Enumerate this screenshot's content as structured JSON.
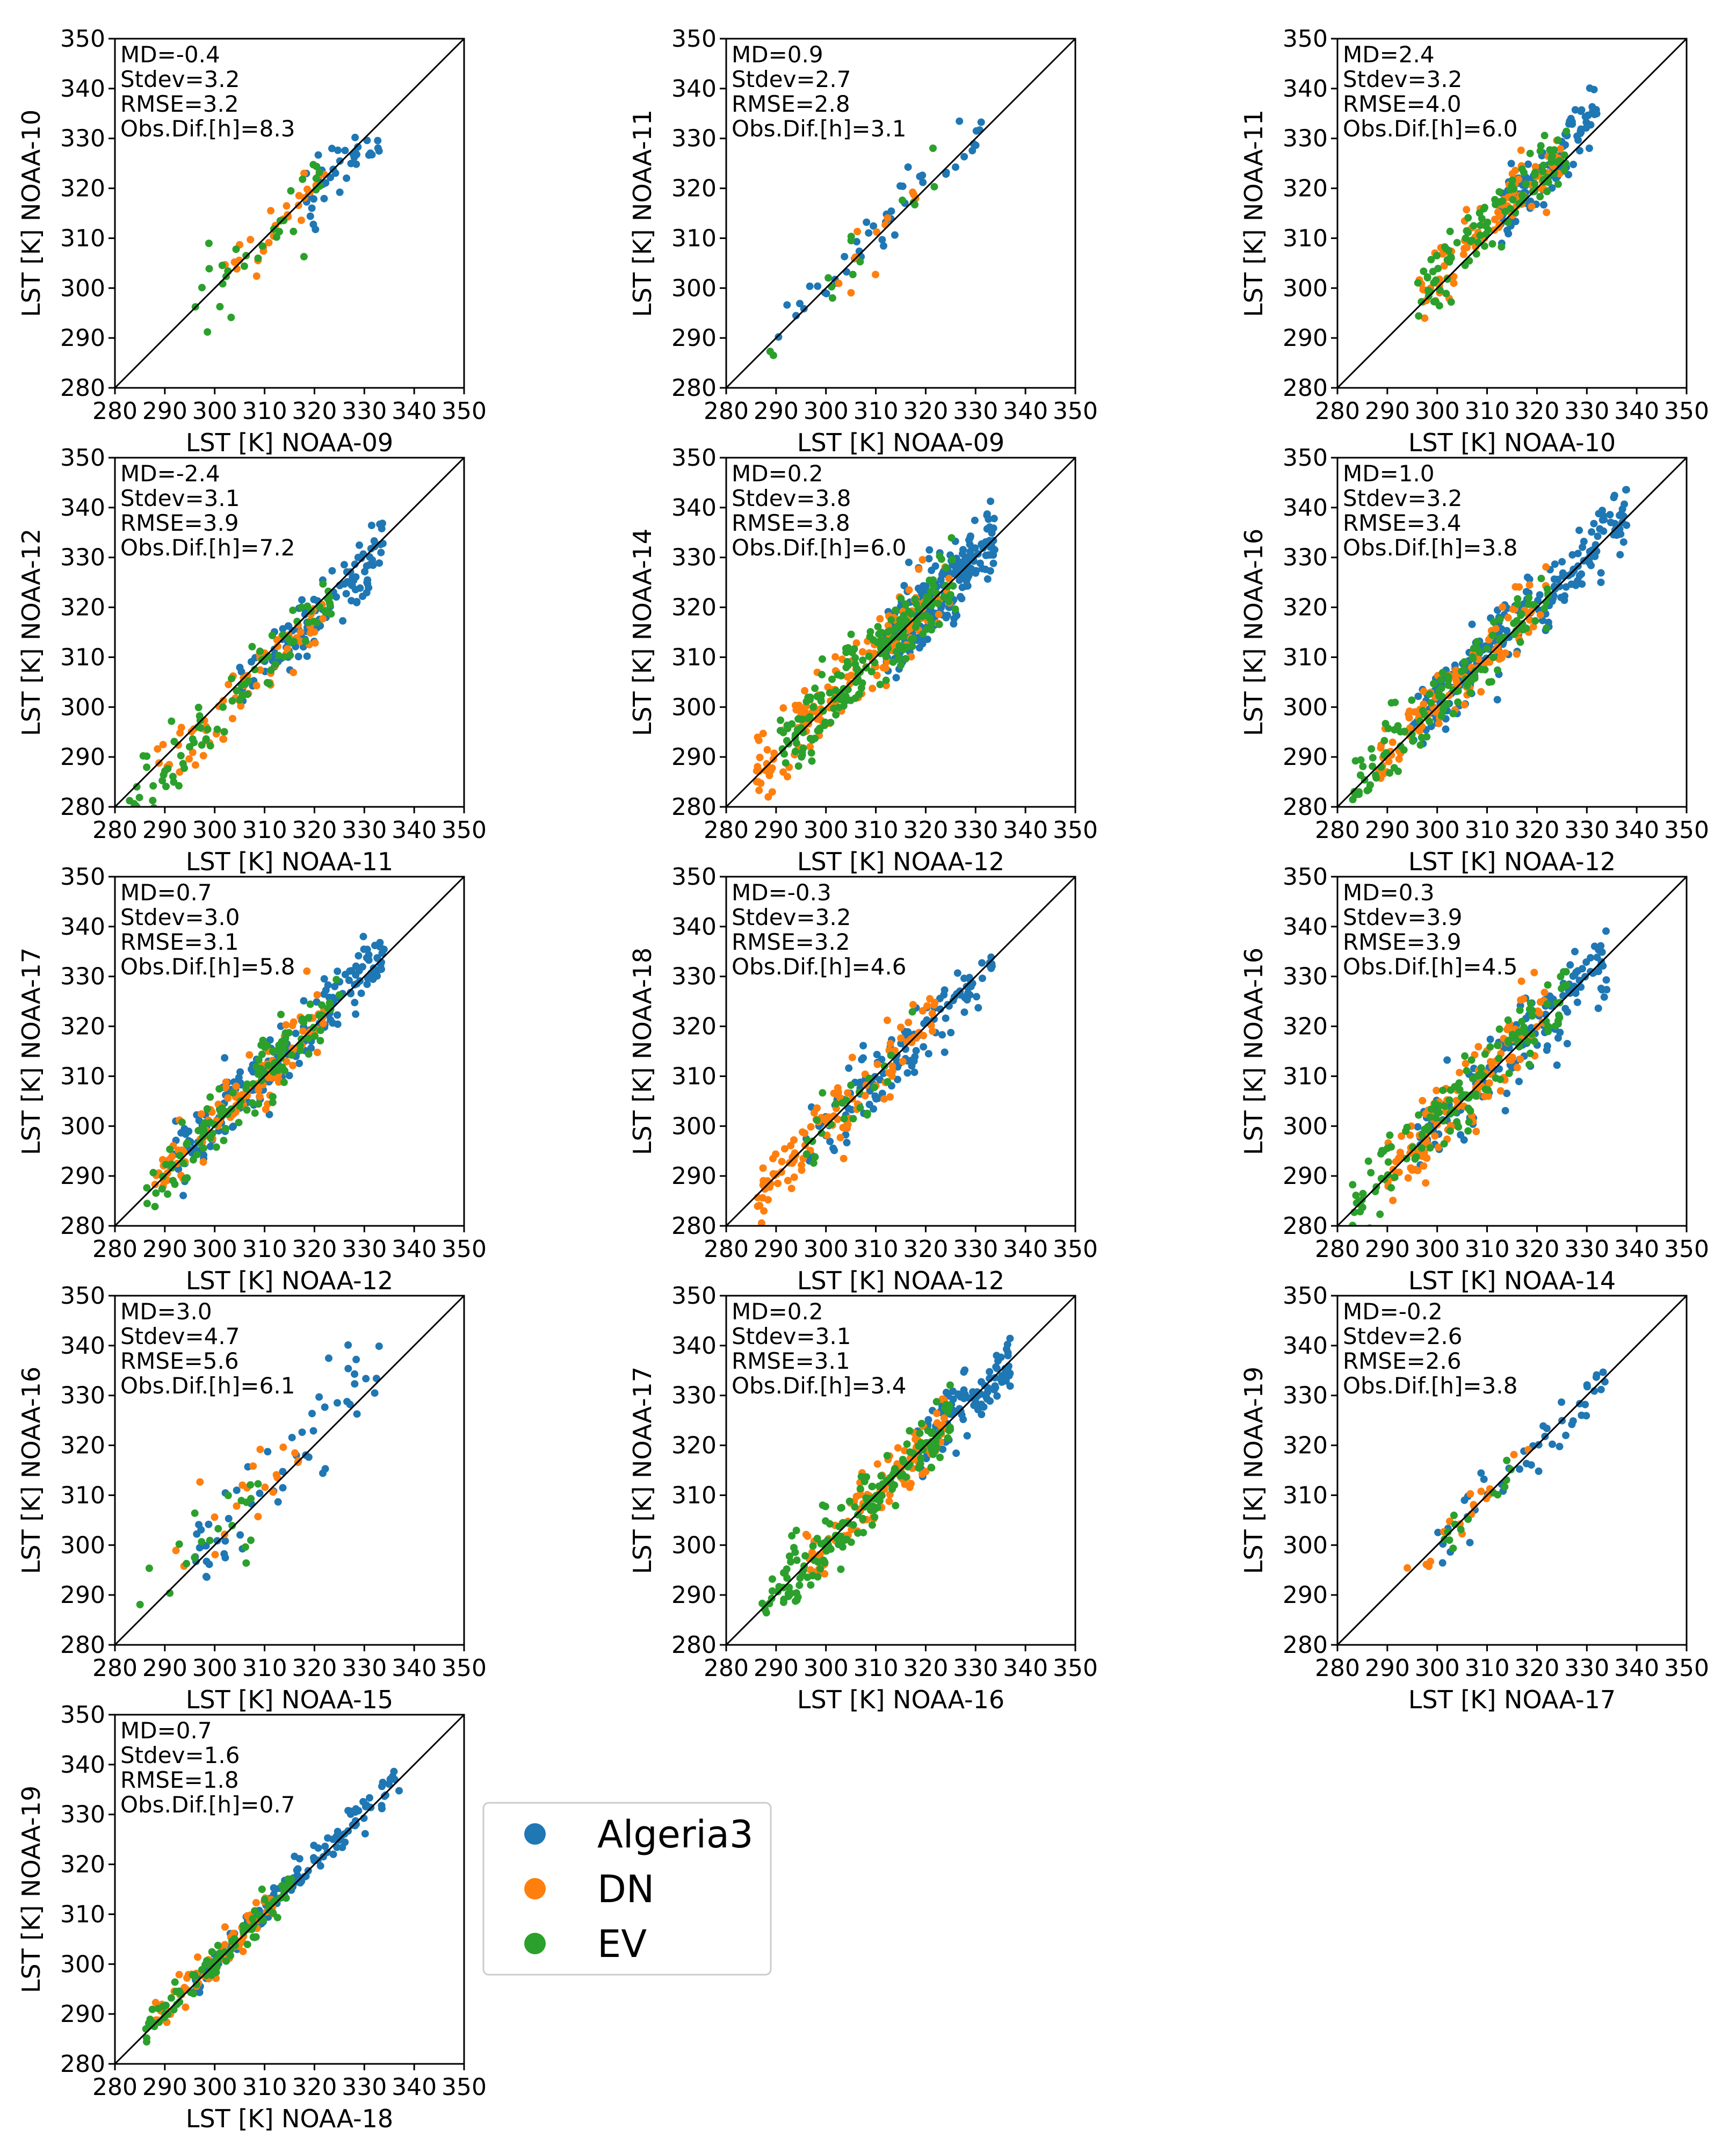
{
  "chart_data": {
    "type": "scatter",
    "series_names": [
      "Algeria3",
      "DN",
      "EV"
    ],
    "colors": {
      "Algeria3": "#1f77b4",
      "DN": "#ff7f0e",
      "EV": "#2ca02c"
    },
    "axis_range": [
      280,
      350
    ],
    "ticks": [
      280,
      290,
      300,
      310,
      320,
      330,
      340,
      350
    ],
    "panels": [
      {
        "xlabel": "LST [K] NOAA-09",
        "ylabel": "LST [K] NOAA-10",
        "stats": [
          "MD=-0.4",
          "Stdev=3.2",
          "RMSE=3.2",
          "Obs.Dif.[h]=8.3"
        ],
        "md": -0.4,
        "sd": 3.2,
        "clusters": {
          "Algeria3": {
            "n": 40,
            "lo": 318,
            "hi": 333
          },
          "DN": {
            "n": 30,
            "lo": 302,
            "hi": 322
          },
          "EV": {
            "n": 32,
            "lo": 296,
            "hi": 322
          }
        }
      },
      {
        "xlabel": "LST [K] NOAA-09",
        "ylabel": "LST [K] NOAA-11",
        "stats": [
          "MD=0.9",
          "Stdev=2.7",
          "RMSE=2.8",
          "Obs.Dif.[h]=3.1"
        ],
        "md": 0.9,
        "sd": 2.7,
        "clusters": {
          "Algeria3": {
            "n": 45,
            "lo": 290,
            "hi": 333
          },
          "DN": {
            "n": 12,
            "lo": 300,
            "hi": 318
          },
          "EV": {
            "n": 14,
            "lo": 288,
            "hi": 322
          }
        }
      },
      {
        "xlabel": "LST [K] NOAA-10",
        "ylabel": "LST [K] NOAA-11",
        "stats": [
          "MD=2.4",
          "Stdev=3.2",
          "RMSE=4.0",
          "Obs.Dif.[h]=6.0"
        ],
        "md": 2.4,
        "sd": 3.2,
        "clusters": {
          "Algeria3": {
            "n": 110,
            "lo": 312,
            "hi": 332
          },
          "DN": {
            "n": 90,
            "lo": 296,
            "hi": 325
          },
          "EV": {
            "n": 110,
            "lo": 296,
            "hi": 326
          }
        }
      },
      {
        "xlabel": "LST [K] NOAA-11",
        "ylabel": "LST [K] NOAA-12",
        "stats": [
          "MD=-2.4",
          "Stdev=3.1",
          "RMSE=3.9",
          "Obs.Dif.[h]=7.2"
        ],
        "md": -2.4,
        "sd": 3.1,
        "clusters": {
          "Algeria3": {
            "n": 110,
            "lo": 305,
            "hi": 334
          },
          "DN": {
            "n": 70,
            "lo": 288,
            "hi": 322
          },
          "EV": {
            "n": 90,
            "lo": 282,
            "hi": 324
          }
        }
      },
      {
        "xlabel": "LST [K] NOAA-12",
        "ylabel": "LST [K] NOAA-14",
        "stats": [
          "MD=0.2",
          "Stdev=3.8",
          "RMSE=3.8",
          "Obs.Dif.[h]=6.0"
        ],
        "md": 0.2,
        "sd": 3.8,
        "clusters": {
          "Algeria3": {
            "n": 260,
            "lo": 312,
            "hi": 334
          },
          "DN": {
            "n": 160,
            "lo": 286,
            "hi": 325
          },
          "EV": {
            "n": 190,
            "lo": 290,
            "hi": 326
          }
        }
      },
      {
        "xlabel": "LST [K] NOAA-12",
        "ylabel": "LST [K] NOAA-16",
        "stats": [
          "MD=1.0",
          "Stdev=3.2",
          "RMSE=3.4",
          "Obs.Dif.[h]=3.8"
        ],
        "md": 1.0,
        "sd": 3.2,
        "clusters": {
          "Algeria3": {
            "n": 230,
            "lo": 295,
            "hi": 338
          },
          "DN": {
            "n": 100,
            "lo": 288,
            "hi": 322
          },
          "EV": {
            "n": 120,
            "lo": 283,
            "hi": 325
          }
        }
      },
      {
        "xlabel": "LST [K] NOAA-12",
        "ylabel": "LST [K] NOAA-17",
        "stats": [
          "MD=0.7",
          "Stdev=3.0",
          "RMSE=3.1",
          "Obs.Dif.[h]=5.8"
        ],
        "md": 0.7,
        "sd": 3.0,
        "clusters": {
          "Algeria3": {
            "n": 190,
            "lo": 292,
            "hi": 334
          },
          "DN": {
            "n": 110,
            "lo": 288,
            "hi": 322
          },
          "EV": {
            "n": 120,
            "lo": 286,
            "hi": 325
          }
        }
      },
      {
        "xlabel": "LST [K] NOAA-12",
        "ylabel": "LST [K] NOAA-18",
        "stats": [
          "MD=-0.3",
          "Stdev=3.2",
          "RMSE=3.2",
          "Obs.Dif.[h]=4.6"
        ],
        "md": -0.3,
        "sd": 3.2,
        "clusters": {
          "Algeria3": {
            "n": 130,
            "lo": 296,
            "hi": 334
          },
          "DN": {
            "n": 110,
            "lo": 286,
            "hi": 322
          },
          "EV": {
            "n": 25,
            "lo": 295,
            "hi": 322
          }
        }
      },
      {
        "xlabel": "LST [K] NOAA-14",
        "ylabel": "LST [K] NOAA-16",
        "stats": [
          "MD=0.3",
          "Stdev=3.9",
          "RMSE=3.9",
          "Obs.Dif.[h]=4.5"
        ],
        "md": 0.3,
        "sd": 3.9,
        "clusters": {
          "Algeria3": {
            "n": 150,
            "lo": 296,
            "hi": 334
          },
          "DN": {
            "n": 130,
            "lo": 290,
            "hi": 322
          },
          "EV": {
            "n": 140,
            "lo": 283,
            "hi": 326
          }
        }
      },
      {
        "xlabel": "LST [K] NOAA-15",
        "ylabel": "LST [K] NOAA-16",
        "stats": [
          "MD=3.0",
          "Stdev=4.7",
          "RMSE=5.6",
          "Obs.Dif.[h]=6.1"
        ],
        "md": 3.0,
        "sd": 4.7,
        "clusters": {
          "Algeria3": {
            "n": 55,
            "lo": 296,
            "hi": 333
          },
          "DN": {
            "n": 20,
            "lo": 292,
            "hi": 318
          },
          "EV": {
            "n": 20,
            "lo": 284,
            "hi": 310
          }
        }
      },
      {
        "xlabel": "LST [K] NOAA-16",
        "ylabel": "LST [K] NOAA-17",
        "stats": [
          "MD=0.2",
          "Stdev=3.1",
          "RMSE=3.1",
          "Obs.Dif.[h]=3.4"
        ],
        "md": 0.2,
        "sd": 3.1,
        "clusters": {
          "Algeria3": {
            "n": 120,
            "lo": 318,
            "hi": 337
          },
          "DN": {
            "n": 110,
            "lo": 296,
            "hi": 324
          },
          "EV": {
            "n": 170,
            "lo": 287,
            "hi": 325
          }
        }
      },
      {
        "xlabel": "LST [K] NOAA-17",
        "ylabel": "LST [K] NOAA-19",
        "stats": [
          "MD=-0.2",
          "Stdev=2.6",
          "RMSE=2.6",
          "Obs.Dif.[h]=3.8"
        ],
        "md": -0.2,
        "sd": 2.6,
        "clusters": {
          "Algeria3": {
            "n": 45,
            "lo": 300,
            "hi": 334
          },
          "DN": {
            "n": 18,
            "lo": 293,
            "hi": 322
          },
          "EV": {
            "n": 14,
            "lo": 298,
            "hi": 315
          }
        }
      },
      {
        "xlabel": "LST [K] NOAA-18",
        "ylabel": "LST [K] NOAA-19",
        "stats": [
          "MD=0.7",
          "Stdev=1.6",
          "RMSE=1.8",
          "Obs.Dif.[h]=0.7"
        ],
        "md": 0.7,
        "sd": 1.6,
        "clusters": {
          "Algeria3": {
            "n": 130,
            "lo": 296,
            "hi": 337
          },
          "DN": {
            "n": 70,
            "lo": 288,
            "hi": 312
          },
          "EV": {
            "n": 100,
            "lo": 286,
            "hi": 316
          }
        }
      }
    ],
    "legend": [
      {
        "name": "Algeria3",
        "color": "#1f77b4"
      },
      {
        "name": "DN",
        "color": "#ff7f0e"
      },
      {
        "name": "EV",
        "color": "#2ca02c"
      }
    ]
  }
}
